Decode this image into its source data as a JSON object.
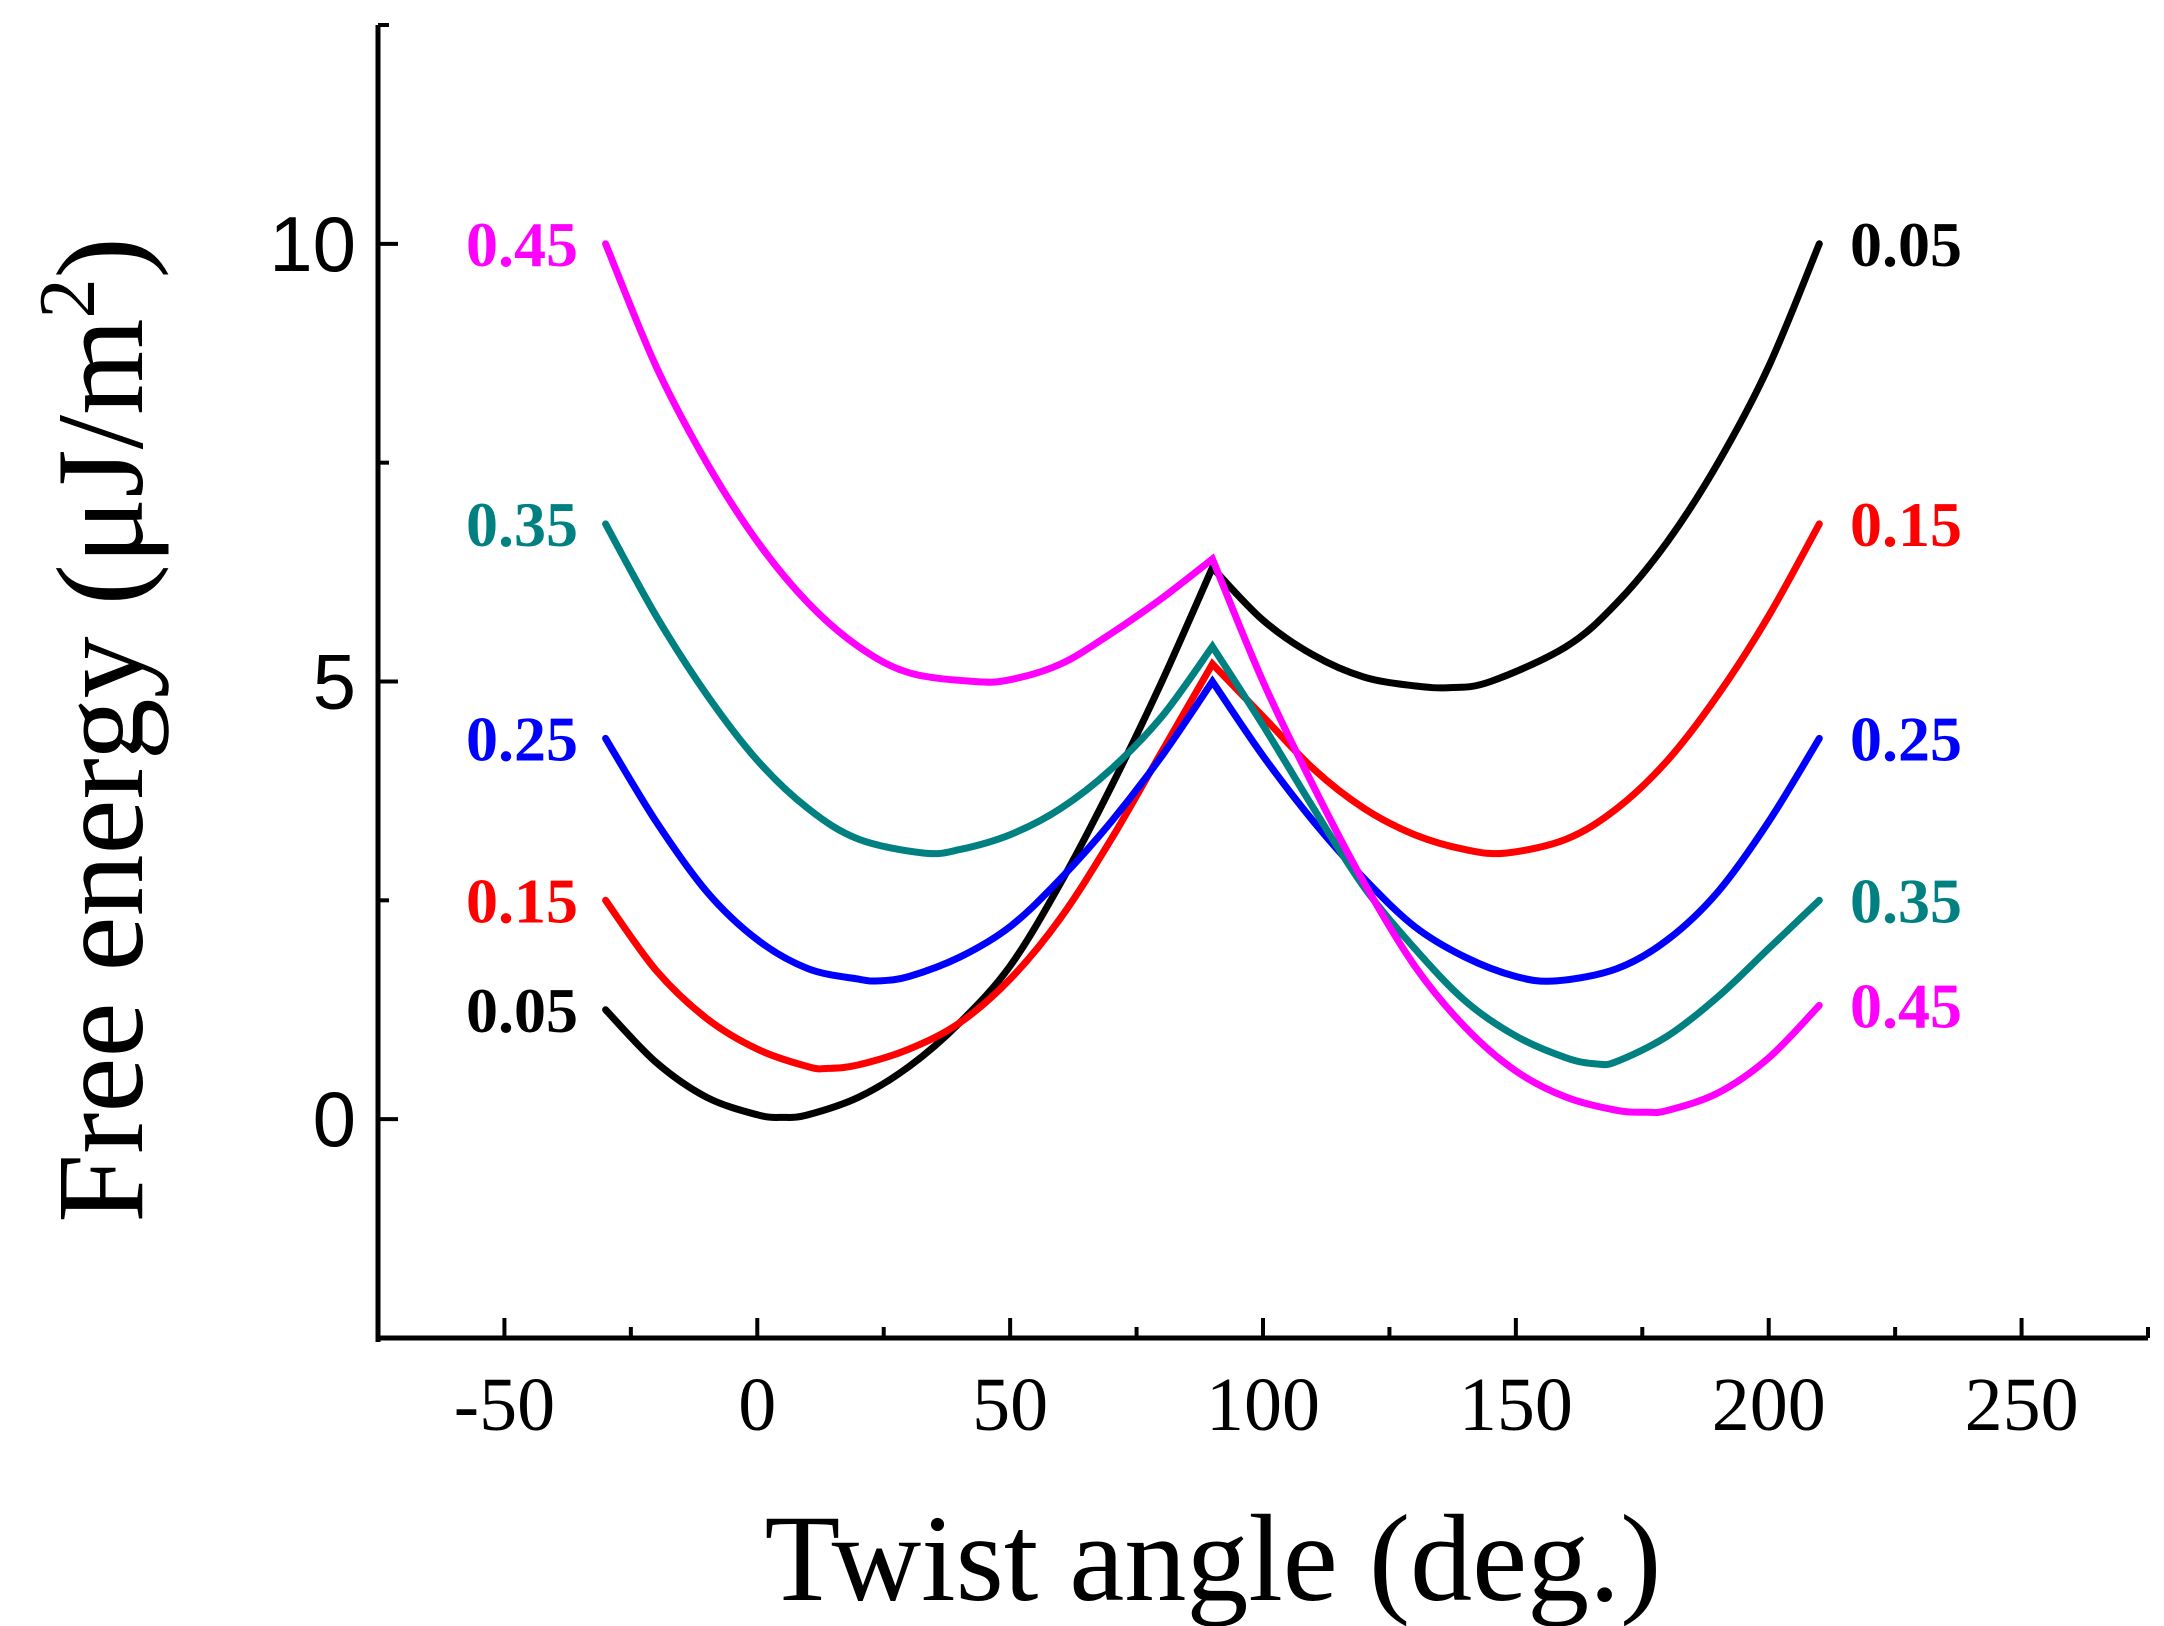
{
  "chart_data": {
    "type": "line",
    "title": "",
    "xlabel": "Twist angle (deg.)",
    "ylabel": "Free energy (μJ/m",
    "ylabel_superscript": "2",
    "ylabel_close": ")",
    "xlim": [
      -75,
      275
    ],
    "ylim": [
      -2.5,
      12.5
    ],
    "x_ticks": [
      -50,
      0,
      50,
      100,
      150,
      200,
      250
    ],
    "y_ticks": [
      0,
      5,
      10
    ],
    "grid": false,
    "legend": "inline labels at both curve ends",
    "series": [
      {
        "name": "0.05",
        "color": "#000000",
        "x": [
          -30,
          -20,
          -10,
          0,
          5,
          10,
          20,
          30,
          40,
          50,
          60,
          70,
          80,
          90,
          100,
          110,
          120,
          130,
          137,
          145,
          160,
          170,
          180,
          190,
          200,
          210
        ],
        "y": [
          1.25,
          0.65,
          0.25,
          0.05,
          0.02,
          0.05,
          0.25,
          0.6,
          1.1,
          1.75,
          2.7,
          3.8,
          5.0,
          6.3,
          5.7,
          5.3,
          5.05,
          4.95,
          4.93,
          5.0,
          5.4,
          5.9,
          6.6,
          7.5,
          8.6,
          10.0
        ],
        "left_label": "0.05",
        "right_label": "0.05"
      },
      {
        "name": "0.15",
        "color": "#ff0000",
        "x": [
          -30,
          -20,
          -10,
          0,
          10,
          14,
          20,
          30,
          40,
          50,
          60,
          70,
          80,
          90,
          100,
          110,
          120,
          130,
          140,
          148,
          160,
          170,
          180,
          190,
          200,
          210
        ],
        "y": [
          2.5,
          1.7,
          1.15,
          0.8,
          0.6,
          0.58,
          0.62,
          0.8,
          1.1,
          1.6,
          2.3,
          3.2,
          4.2,
          5.2,
          4.6,
          4.0,
          3.55,
          3.25,
          3.08,
          3.04,
          3.2,
          3.55,
          4.1,
          4.85,
          5.75,
          6.8
        ],
        "left_label": "0.15",
        "right_label": "0.15"
      },
      {
        "name": "0.25",
        "color": "#0000ff",
        "x": [
          -30,
          -20,
          -10,
          0,
          10,
          20,
          24,
          30,
          40,
          50,
          60,
          70,
          80,
          90,
          100,
          110,
          120,
          130,
          140,
          150,
          158,
          170,
          180,
          190,
          200,
          210
        ],
        "y": [
          4.35,
          3.4,
          2.6,
          2.05,
          1.72,
          1.6,
          1.58,
          1.63,
          1.85,
          2.2,
          2.75,
          3.4,
          4.15,
          5.0,
          4.15,
          3.4,
          2.75,
          2.2,
          1.85,
          1.63,
          1.58,
          1.72,
          2.05,
          2.6,
          3.4,
          4.35
        ],
        "left_label": "0.25",
        "right_label": "0.25"
      },
      {
        "name": "0.35",
        "color": "#008080",
        "x": [
          -30,
          -20,
          -10,
          0,
          10,
          20,
          33,
          40,
          50,
          60,
          70,
          80,
          90,
          100,
          110,
          120,
          130,
          140,
          150,
          160,
          166,
          170,
          180,
          190,
          200,
          210
        ],
        "y": [
          6.8,
          5.75,
          4.85,
          4.1,
          3.55,
          3.2,
          3.04,
          3.08,
          3.25,
          3.55,
          4.0,
          4.6,
          5.4,
          4.5,
          3.55,
          2.65,
          1.95,
          1.35,
          0.95,
          0.7,
          0.63,
          0.66,
          0.95,
          1.4,
          1.95,
          2.5
        ],
        "left_label": "0.35",
        "right_label": "0.35"
      },
      {
        "name": "0.45",
        "color": "#ff00ff",
        "x": [
          -30,
          -20,
          -10,
          0,
          10,
          20,
          30,
          43,
          50,
          60,
          70,
          80,
          90,
          100,
          110,
          120,
          130,
          140,
          150,
          160,
          170,
          176,
          180,
          190,
          200,
          210
        ],
        "y": [
          10.0,
          8.6,
          7.5,
          6.6,
          5.9,
          5.4,
          5.1,
          5.0,
          5.02,
          5.2,
          5.55,
          5.95,
          6.4,
          5.0,
          3.8,
          2.7,
          1.75,
          1.05,
          0.55,
          0.25,
          0.1,
          0.08,
          0.1,
          0.3,
          0.7,
          1.3
        ],
        "left_label": "0.45",
        "right_label": "0.45"
      }
    ]
  }
}
